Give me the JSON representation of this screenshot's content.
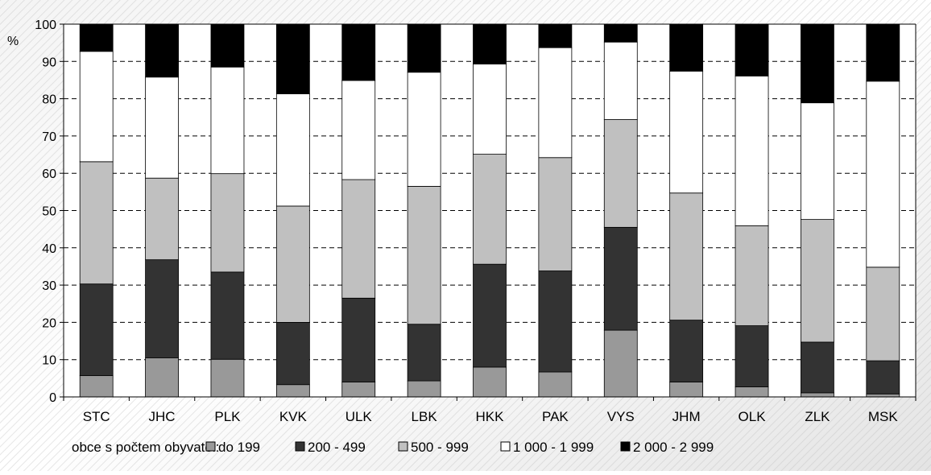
{
  "chart_data": {
    "type": "bar",
    "stacked": true,
    "ylabel": "%",
    "ylim": [
      0,
      100
    ],
    "yticks": [
      0,
      10,
      20,
      30,
      40,
      50,
      60,
      70,
      80,
      90,
      100
    ],
    "grid": true,
    "legend_position": "bottom",
    "legend_title": "obce s počtem obyvatel:",
    "categories": [
      "STC",
      "JHC",
      "PLK",
      "KVK",
      "ULK",
      "LBK",
      "HKK",
      "PAK",
      "VYS",
      "JHM",
      "OLK",
      "ZLK",
      "MSK"
    ],
    "series": [
      {
        "name": "do 199",
        "color": "#999999",
        "values": [
          5.7,
          10.5,
          10.1,
          3.3,
          4.0,
          4.3,
          8.0,
          6.7,
          17.9,
          4.0,
          2.7,
          1.1,
          0.8
        ]
      },
      {
        "name": "200 - 499",
        "color": "#333333",
        "values": [
          24.6,
          26.3,
          23.4,
          16.7,
          22.5,
          15.2,
          27.6,
          27.1,
          27.6,
          16.6,
          16.4,
          13.6,
          8.9
        ]
      },
      {
        "name": "500 - 999",
        "color": "#c0c0c0",
        "values": [
          32.8,
          21.9,
          26.4,
          31.2,
          31.8,
          37.0,
          29.5,
          30.4,
          28.9,
          34.1,
          26.8,
          32.9,
          25.1
        ]
      },
      {
        "name": "1 000 - 1 999",
        "color": "#ffffff",
        "values": [
          29.6,
          27.1,
          28.6,
          30.1,
          26.6,
          30.6,
          24.2,
          29.5,
          20.8,
          32.7,
          40.2,
          31.3,
          49.9
        ]
      },
      {
        "name": "2 000 - 2 999",
        "color": "#000000",
        "values": [
          7.3,
          14.2,
          11.5,
          18.7,
          15.1,
          12.9,
          10.7,
          6.3,
          4.8,
          12.6,
          13.9,
          21.1,
          15.3
        ]
      }
    ]
  }
}
